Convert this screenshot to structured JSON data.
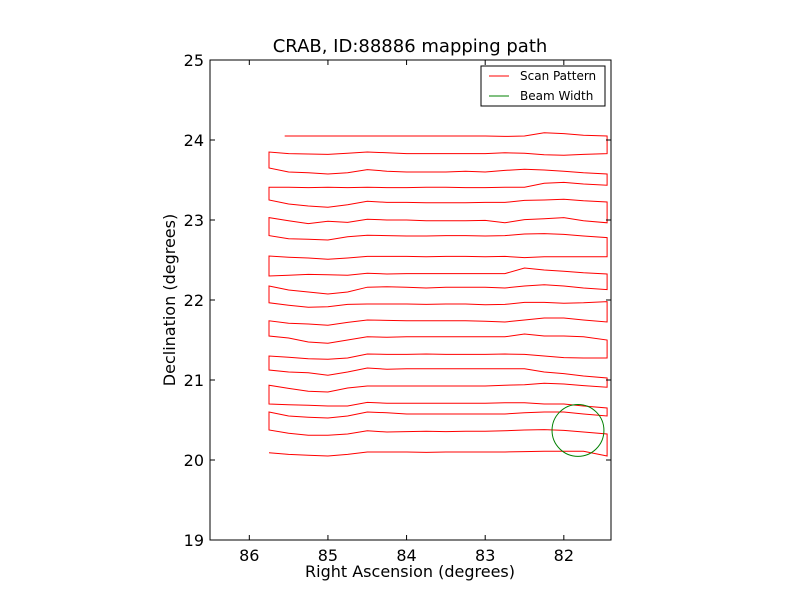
{
  "chart_data": {
    "type": "line",
    "title": "CRAB, ID:88886 mapping path",
    "xlabel": "Right Ascension (degrees)",
    "ylabel": "Declination (degrees)",
    "xlim": [
      86.5,
      81.4
    ],
    "ylim": [
      19,
      25
    ],
    "x_inverted": true,
    "xticks": [
      86,
      85,
      84,
      83,
      82
    ],
    "yticks": [
      19,
      20,
      21,
      22,
      23,
      24,
      25
    ],
    "xtick_labels": [
      "86",
      "85",
      "84",
      "83",
      "82"
    ],
    "ytick_labels": [
      "19",
      "20",
      "21",
      "22",
      "23",
      "24",
      "25"
    ],
    "grid": false,
    "legend_position": "top-right",
    "series": [
      {
        "name": "Scan Pattern",
        "color": "#ff0000",
        "ra_endpoints": [
          85.75,
          81.45
        ],
        "wiggle_ra": [
          85.75,
          85.5,
          85.25,
          85.0,
          84.75,
          84.5,
          84.25,
          84.0,
          83.75,
          83.5,
          83.25,
          83.0,
          82.75,
          82.5,
          82.25,
          82.0,
          81.75,
          81.45
        ],
        "first_point": [
          85.55,
          24.05
        ],
        "rows": [
          {
            "dec": 24.05,
            "wiggle": [
              0,
              0,
              0,
              0,
              0,
              0,
              0,
              0,
              0,
              0,
              0,
              0,
              -0.01,
              0,
              0.08,
              0.06,
              0.02,
              0
            ]
          },
          {
            "dec": 23.8,
            "wiggle": [
              0.1,
              0.06,
              0.05,
              0.04,
              0.07,
              0.1,
              0.08,
              0.06,
              0.06,
              0.06,
              0.06,
              0.06,
              0.08,
              0.07,
              0.03,
              0.02,
              0.04,
              0.06
            ]
          },
          {
            "dec": 23.6,
            "wiggle": [
              0.1,
              0,
              -0.02,
              -0.05,
              -0.02,
              0.06,
              0.02,
              0,
              0,
              0,
              0.02,
              0,
              0.04,
              0.07,
              0.05,
              0.02,
              -0.02,
              -0.05
            ]
          },
          {
            "dec": 23.42,
            "wiggle": [
              -0.02,
              -0.02,
              -0.03,
              -0.02,
              -0.03,
              -0.02,
              -0.03,
              -0.03,
              -0.02,
              -0.02,
              -0.03,
              -0.03,
              -0.02,
              -0.02,
              0.08,
              0.1,
              0.06,
              0.03
            ]
          },
          {
            "dec": 23.2,
            "wiggle": [
              0.1,
              0,
              -0.05,
              -0.08,
              -0.02,
              0.07,
              0.04,
              0.04,
              0.03,
              0.03,
              0.03,
              0.04,
              0.04,
              0.09,
              0.1,
              0.12,
              0.08,
              0.05
            ]
          },
          {
            "dec": 22.98,
            "wiggle": [
              0.1,
              0.02,
              -0.05,
              0.01,
              -0.02,
              0.06,
              0.04,
              0.04,
              0.02,
              0.02,
              0.02,
              0.03,
              -0.03,
              0.05,
              0.07,
              0.1,
              0.02,
              -0.03
            ]
          },
          {
            "dec": 22.78,
            "wiggle": [
              0.05,
              -0.03,
              -0.04,
              -0.06,
              0.02,
              0.06,
              0.05,
              0.04,
              0.04,
              0.05,
              0.05,
              0.04,
              0.05,
              0.09,
              0.1,
              0.08,
              0.04,
              0.0
            ]
          },
          {
            "dec": 22.55,
            "wiggle": [
              0.0,
              -0.03,
              -0.05,
              -0.08,
              -0.05,
              -0.01,
              -0.01,
              -0.01,
              -0.02,
              -0.01,
              -0.01,
              -0.02,
              -0.01,
              -0.04,
              -0.02,
              -0.02,
              -0.02,
              -0.02
            ]
          },
          {
            "dec": 22.35,
            "wiggle": [
              -0.1,
              -0.08,
              -0.06,
              -0.07,
              -0.08,
              -0.03,
              -0.05,
              -0.04,
              -0.04,
              -0.04,
              -0.04,
              -0.04,
              -0.04,
              0.1,
              0.05,
              0.02,
              -0.02,
              -0.05
            ]
          },
          {
            "dec": 22.15,
            "wiggle": [
              0.05,
              -0.05,
              -0.1,
              -0.15,
              -0.1,
              0.02,
              0.03,
              0.02,
              0.0,
              0.02,
              0.02,
              0.02,
              0.0,
              0.05,
              0.08,
              0.05,
              0.0,
              -0.04
            ]
          },
          {
            "dec": 21.95,
            "wiggle": [
              0.03,
              -0.03,
              -0.08,
              -0.07,
              -0.01,
              0.0,
              0.0,
              0.0,
              -0.01,
              0.0,
              0.0,
              -0.02,
              -0.01,
              0.04,
              0.04,
              0.02,
              0.03,
              0.06
            ]
          },
          {
            "dec": 21.75,
            "wiggle": [
              -0.02,
              -0.08,
              -0.1,
              -0.13,
              -0.06,
              0.0,
              -0.01,
              -0.02,
              -0.02,
              -0.02,
              -0.02,
              -0.03,
              -0.05,
              0.0,
              0.05,
              0.05,
              0.0,
              -0.05
            ]
          },
          {
            "dec": 21.55,
            "wiggle": [
              0.0,
              -0.05,
              -0.15,
              -0.18,
              -0.1,
              -0.02,
              -0.03,
              -0.02,
              -0.02,
              -0.02,
              -0.02,
              -0.02,
              -0.02,
              0.05,
              0.0,
              0.0,
              -0.02,
              -0.1
            ]
          },
          {
            "dec": 21.35,
            "wiggle": [
              -0.1,
              -0.13,
              -0.17,
              -0.18,
              -0.15,
              -0.05,
              -0.06,
              -0.06,
              -0.05,
              -0.06,
              -0.06,
              -0.06,
              -0.05,
              -0.06,
              -0.1,
              -0.14,
              -0.15,
              -0.15
            ]
          },
          {
            "dec": 21.15,
            "wiggle": [
              -0.05,
              -0.1,
              -0.12,
              -0.18,
              -0.1,
              0.0,
              -0.03,
              -0.02,
              -0.02,
              -0.02,
              -0.02,
              -0.02,
              -0.02,
              -0.02,
              -0.1,
              -0.14,
              -0.2,
              -0.25
            ]
          },
          {
            "dec": 20.95,
            "wiggle": [
              -0.03,
              -0.11,
              -0.18,
              -0.2,
              -0.1,
              -0.05,
              -0.05,
              -0.05,
              -0.05,
              -0.05,
              -0.05,
              -0.05,
              -0.03,
              -0.02,
              0.02,
              0.0,
              -0.04,
              -0.08
            ]
          },
          {
            "dec": 20.75,
            "wiggle": [
              -0.1,
              -0.12,
              -0.13,
              -0.15,
              -0.15,
              -0.06,
              -0.08,
              -0.08,
              -0.08,
              -0.08,
              -0.08,
              -0.08,
              -0.07,
              -0.07,
              -0.1,
              -0.1,
              -0.15,
              -0.2
            ]
          },
          {
            "dec": 20.55,
            "wiggle": [
              0.1,
              0.0,
              -0.03,
              -0.05,
              0.0,
              0.1,
              0.08,
              0.05,
              0.05,
              0.05,
              0.05,
              0.05,
              0.05,
              0.08,
              0.1,
              0.1,
              0.05,
              0.0
            ]
          },
          {
            "dec": 20.35,
            "wiggle": [
              0.05,
              -0.03,
              -0.08,
              -0.08,
              -0.05,
              0.03,
              0.0,
              0.01,
              0.02,
              0.01,
              0.02,
              0.02,
              0.03,
              0.05,
              0.06,
              0.04,
              0.0,
              -0.05
            ]
          },
          {
            "dec": 20.1,
            "wiggle": [
              -0.02,
              -0.06,
              -0.08,
              -0.1,
              -0.06,
              0.0,
              0.0,
              0.0,
              -0.01,
              0.0,
              0.0,
              0.0,
              0.0,
              0.01,
              0.02,
              0.02,
              0.02,
              -0.1
            ]
          }
        ]
      },
      {
        "name": "Beam Width",
        "color": "#008000",
        "center": [
          81.82,
          20.37
        ],
        "radius_deg": 0.33
      }
    ]
  }
}
